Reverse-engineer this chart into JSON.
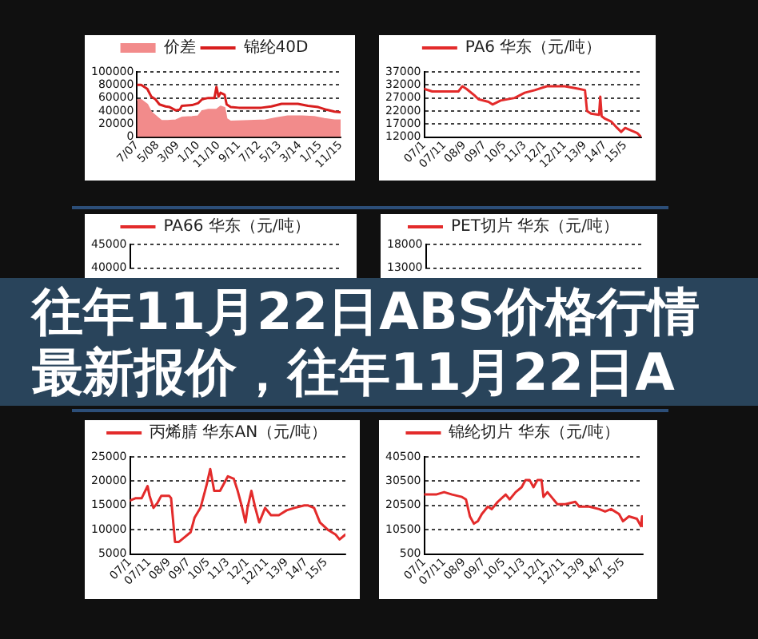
{
  "chart_data": [
    {
      "type": "line",
      "legend": "top",
      "grid": "y",
      "xlim": [
        "2007-07",
        "2015-11"
      ],
      "xticks": [
        {
          "value": "2007-07",
          "label": "7/07"
        },
        {
          "value": "2008-05",
          "label": "5/08"
        },
        {
          "value": "2009-03",
          "label": "3/09"
        },
        {
          "value": "2010-01",
          "label": "1/10"
        },
        {
          "value": "2010-11",
          "label": "11/10"
        },
        {
          "value": "2011-09",
          "label": "9/11"
        },
        {
          "value": "2012-07",
          "label": "7/12"
        },
        {
          "value": "2013-05",
          "label": "5/13"
        },
        {
          "value": "2014-03",
          "label": "3/14"
        },
        {
          "value": "2015-01",
          "label": "1/15"
        },
        {
          "value": "2015-11",
          "label": "11/15"
        }
      ],
      "ylim": [
        0,
        100000
      ],
      "yticks": [
        0,
        20000,
        40000,
        60000,
        80000,
        100000
      ],
      "series": [
        {
          "name": "价差",
          "type": "area",
          "color": "#f28b8b",
          "x": [
            "2007-07",
            "2007-09",
            "2007-12",
            "2008-02",
            "2008-05",
            "2008-07",
            "2008-10",
            "2009-02",
            "2009-05",
            "2009-10",
            "2010-01",
            "2010-03",
            "2010-06",
            "2010-10",
            "2010-12",
            "2011-02",
            "2011-03",
            "2011-05",
            "2012-02",
            "2012-10",
            "2013-03",
            "2013-09",
            "2014-04",
            "2014-10",
            "2015-03",
            "2015-08",
            "2015-11"
          ],
          "values": [
            57000,
            57000,
            50000,
            38000,
            30000,
            25000,
            25000,
            26000,
            30000,
            31000,
            32000,
            40000,
            42000,
            42000,
            47000,
            45000,
            28000,
            24000,
            25000,
            26000,
            29000,
            32000,
            32000,
            31000,
            28000,
            26000,
            26000
          ]
        },
        {
          "name": "锦纶40D",
          "type": "line",
          "color": "#d81e1e",
          "x": [
            "2007-07",
            "2007-09",
            "2007-12",
            "2008-02",
            "2008-04",
            "2008-06",
            "2008-09",
            "2008-11",
            "2009-02",
            "2009-04",
            "2009-05",
            "2009-10",
            "2010-01",
            "2010-03",
            "2010-06",
            "2010-09",
            "2010-10",
            "2010-11",
            "2010-12",
            "2011-02",
            "2011-03",
            "2011-05",
            "2011-09",
            "2012-08",
            "2013-01",
            "2013-06",
            "2014-02",
            "2014-07",
            "2014-12",
            "2015-04",
            "2015-08",
            "2015-11"
          ],
          "values": [
            80000,
            80000,
            74000,
            62000,
            58000,
            50000,
            47000,
            46000,
            41000,
            42000,
            48000,
            49000,
            52000,
            58000,
            60000,
            60000,
            77000,
            62000,
            68000,
            65000,
            50000,
            46000,
            45000,
            45000,
            47000,
            51000,
            51000,
            48000,
            46000,
            42000,
            39000,
            38000
          ]
        }
      ]
    },
    {
      "type": "line",
      "legend": "top",
      "grid": "y",
      "xlim": [
        "2007-01",
        "2016-01"
      ],
      "xticks": [
        {
          "value": "2007-01",
          "label": "07/1"
        },
        {
          "value": "2007-11",
          "label": "07/11"
        },
        {
          "value": "2008-09",
          "label": "08/9"
        },
        {
          "value": "2009-07",
          "label": "09/7"
        },
        {
          "value": "2010-05",
          "label": "10/5"
        },
        {
          "value": "2011-03",
          "label": "11/3"
        },
        {
          "value": "2012-01",
          "label": "12/1"
        },
        {
          "value": "2012-11",
          "label": "12/11"
        },
        {
          "value": "2013-09",
          "label": "13/9"
        },
        {
          "value": "2014-07",
          "label": "14/7"
        },
        {
          "value": "2015-05",
          "label": "15/5"
        }
      ],
      "ylim": [
        12000,
        37000
      ],
      "yticks": [
        12000,
        17000,
        22000,
        27000,
        32000,
        37000
      ],
      "series": [
        {
          "name": "PA6 华东（元/吨）",
          "color": "#e32b2b",
          "x": [
            "2007-01",
            "2007-05",
            "2008-06",
            "2008-08",
            "2008-10",
            "2009-02",
            "2009-04",
            "2009-09",
            "2009-11",
            "2010-03",
            "2010-10",
            "2011-03",
            "2011-08",
            "2012-02",
            "2012-11",
            "2013-06",
            "2013-09",
            "2013-10",
            "2013-12",
            "2014-04-01",
            "2014-04-20",
            "2014-05-10",
            "2014-07",
            "2014-10",
            "2015-01",
            "2015-03",
            "2015-05",
            "2015-08",
            "2015-11",
            "2016-01"
          ],
          "values": [
            30500,
            29500,
            29500,
            31500,
            30500,
            28000,
            26500,
            25500,
            24500,
            26000,
            27000,
            29000,
            30000,
            31500,
            31500,
            30500,
            30000,
            22000,
            21000,
            20500,
            27500,
            20000,
            19000,
            18000,
            15500,
            14000,
            15500,
            14500,
            13500,
            12000
          ]
        }
      ]
    },
    {
      "type": "line",
      "legend": "top",
      "grid": "y",
      "ylim": [
        40000,
        45000
      ],
      "yticks": [
        40000,
        45000
      ],
      "series": [
        {
          "name": "PA66 华东（元/吨）",
          "color": "#e32b2b"
        }
      ]
    },
    {
      "type": "line",
      "legend": "top",
      "grid": "y",
      "ylim": [
        13000,
        18000
      ],
      "yticks": [
        13000,
        18000
      ],
      "series": [
        {
          "name": "PET切片 华东（元/吨）",
          "color": "#e32b2b"
        }
      ]
    },
    {
      "type": "other",
      "title": "往年11月22日ABS价格行情",
      "subtitle": "最新报价，往年11月22日A"
    },
    {
      "type": "line",
      "legend": "top",
      "grid": "y",
      "xlim": [
        "2007-01",
        "2016-03"
      ],
      "xticks": [
        {
          "value": "2007-01",
          "label": "07/1"
        },
        {
          "value": "2007-11",
          "label": "07/11"
        },
        {
          "value": "2008-09",
          "label": "08/9"
        },
        {
          "value": "2009-07",
          "label": "09/7"
        },
        {
          "value": "2010-05",
          "label": "10/5"
        },
        {
          "value": "2011-03",
          "label": "11/3"
        },
        {
          "value": "2012-01",
          "label": "12/1"
        },
        {
          "value": "2012-11",
          "label": "12/11"
        },
        {
          "value": "2013-09",
          "label": "13/9"
        },
        {
          "value": "2014-07",
          "label": "14/7"
        },
        {
          "value": "2015-05",
          "label": "15/5"
        }
      ],
      "ylim": [
        5000,
        25000
      ],
      "yticks": [
        5000,
        10000,
        15000,
        20000,
        25000
      ],
      "series": [
        {
          "name": "丙烯腈 华东AN（元/吨）",
          "color": "#e32b2b",
          "x": [
            "2007-01",
            "2007-04",
            "2007-07",
            "2007-10",
            "2007-11",
            "2008-01",
            "2008-03",
            "2008-05",
            "2008-09",
            "2008-10",
            "2008-12",
            "2009-02",
            "2009-05",
            "2009-08",
            "2009-10",
            "2010-01",
            "2010-04",
            "2010-06",
            "2010-08",
            "2010-11",
            "2011-03",
            "2011-06",
            "2011-08",
            "2011-10",
            "2011-12",
            "2012-01",
            "2012-03",
            "2012-05",
            "2012-07",
            "2012-10",
            "2013-01",
            "2013-05",
            "2013-09",
            "2014-01",
            "2014-06",
            "2014-08",
            "2014-11",
            "2015-02",
            "2015-06",
            "2015-10",
            "2015-12",
            "2016-03"
          ],
          "values": [
            16000,
            16500,
            16500,
            19000,
            17000,
            14500,
            15500,
            17000,
            17000,
            16500,
            7500,
            7500,
            8500,
            9500,
            12500,
            14500,
            19000,
            22500,
            18000,
            18000,
            21000,
            20500,
            18000,
            15000,
            11500,
            14500,
            18000,
            14500,
            11500,
            14500,
            13000,
            13000,
            14000,
            14500,
            15000,
            15000,
            14500,
            11500,
            10000,
            9000,
            8000,
            9000
          ]
        }
      ]
    },
    {
      "type": "line",
      "legend": "top",
      "grid": "y",
      "xlim": [
        "2007-01",
        "2016-03"
      ],
      "xticks": [
        {
          "value": "2007-01",
          "label": "07/1"
        },
        {
          "value": "2007-11",
          "label": "07/11"
        },
        {
          "value": "2008-09",
          "label": "08/9"
        },
        {
          "value": "2009-07",
          "label": "09/7"
        },
        {
          "value": "2010-05",
          "label": "10/5"
        },
        {
          "value": "2011-03",
          "label": "11/3"
        },
        {
          "value": "2012-01",
          "label": "12/1"
        },
        {
          "value": "2012-11",
          "label": "12/11"
        },
        {
          "value": "2013-09",
          "label": "13/9"
        },
        {
          "value": "2014-07",
          "label": "14/7"
        },
        {
          "value": "2015-05",
          "label": "15/5"
        }
      ],
      "ylim": [
        500,
        40500
      ],
      "yticks": [
        500,
        10500,
        20500,
        30500,
        40500
      ],
      "series": [
        {
          "name": "锦纶切片 华东（元/吨）",
          "color": "#e32b2b",
          "x": [
            "2007-01",
            "2007-04",
            "2007-07",
            "2007-11",
            "2008-03",
            "2008-08",
            "2008-10",
            "2008-12",
            "2009-02",
            "2009-04",
            "2009-06",
            "2009-09",
            "2009-11",
            "2010-02",
            "2010-06",
            "2010-08",
            "2010-11",
            "2011-02",
            "2011-04",
            "2011-06",
            "2011-08",
            "2011-10",
            "2011-12",
            "2012-01",
            "2012-03",
            "2012-05",
            "2012-08",
            "2012-12",
            "2013-05",
            "2013-07",
            "2013-12",
            "2014-05",
            "2014-08",
            "2014-11",
            "2015-03",
            "2015-05",
            "2015-08",
            "2015-12",
            "2016-02",
            "2016-02-20",
            "2016-03"
          ],
          "values": [
            25000,
            25000,
            25000,
            26000,
            25000,
            24000,
            23000,
            16000,
            13000,
            14000,
            17000,
            20000,
            19000,
            22000,
            25000,
            23000,
            26000,
            28000,
            31000,
            31000,
            28000,
            31000,
            31000,
            24000,
            26000,
            24000,
            21000,
            21000,
            22000,
            20000,
            20000,
            19000,
            18000,
            19000,
            17000,
            14000,
            16000,
            15000,
            12000,
            16000,
            12000
          ]
        }
      ]
    }
  ]
}
